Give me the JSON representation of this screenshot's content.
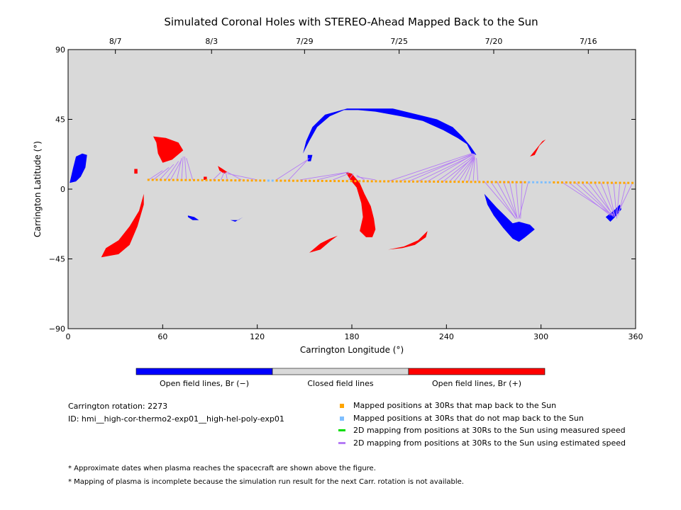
{
  "colors": {
    "background_panel": "#d9d9d9",
    "open_negative": "#0000ff",
    "closed": "#d9d9d9",
    "open_positive": "#ff0000",
    "mapped_back": "#ffa500",
    "not_mapped_back": "#7fbfff",
    "measured_speed": "#00dd00",
    "estimated_speed": "#b57cf5"
  },
  "chart_data": {
    "type": "scatter",
    "title": "Simulated Coronal Holes with STEREO-Ahead Mapped Back to the Sun",
    "xlabel": "Carrington Longitude (°)",
    "ylabel": "Carrington Latitude (°)",
    "xlim": [
      0,
      360
    ],
    "ylim": [
      -90,
      90
    ],
    "x_ticks": [
      "0",
      "60",
      "120",
      "180",
      "240",
      "300",
      "360"
    ],
    "x_tick_values": [
      0,
      60,
      120,
      180,
      240,
      300,
      360
    ],
    "y_ticks": [
      "−90",
      "−45",
      "0",
      "45",
      "90"
    ],
    "y_tick_values": [
      -90,
      -45,
      0,
      45,
      90
    ],
    "top_axis_dates": [
      {
        "label": "8/7",
        "lon": 30
      },
      {
        "label": "8/3",
        "lon": 91
      },
      {
        "label": "7/29",
        "lon": 150
      },
      {
        "label": "7/25",
        "lon": 210
      },
      {
        "label": "7/20",
        "lon": 270
      },
      {
        "label": "7/16",
        "lon": 330
      }
    ],
    "coronal_holes": [
      {
        "polarity": "negative",
        "points": [
          [
            1,
            4
          ],
          [
            3,
            13
          ],
          [
            5,
            21
          ],
          [
            9,
            23
          ],
          [
            12,
            22
          ],
          [
            11,
            14
          ],
          [
            8,
            8
          ],
          [
            5,
            5
          ]
        ]
      },
      {
        "polarity": "positive",
        "points": [
          [
            54,
            34
          ],
          [
            62,
            33
          ],
          [
            70,
            30
          ],
          [
            73,
            25
          ],
          [
            66,
            19
          ],
          [
            60,
            17
          ],
          [
            57,
            23
          ],
          [
            56,
            30
          ]
        ]
      },
      {
        "polarity": "positive",
        "points": [
          [
            48,
            -3
          ],
          [
            45,
            -14
          ],
          [
            39,
            -24
          ],
          [
            32,
            -33
          ],
          [
            24,
            -38
          ],
          [
            21,
            -44
          ],
          [
            32,
            -42
          ],
          [
            39,
            -36
          ],
          [
            44,
            -24
          ],
          [
            48,
            -10
          ]
        ]
      },
      {
        "polarity": "negative",
        "points": [
          [
            149,
            23
          ],
          [
            153,
            31
          ],
          [
            158,
            40
          ],
          [
            166,
            47
          ],
          [
            175,
            51
          ],
          [
            184,
            51
          ],
          [
            195,
            50
          ],
          [
            211,
            47
          ],
          [
            225,
            44
          ],
          [
            238,
            38
          ],
          [
            247,
            33
          ],
          [
            253,
            29
          ],
          [
            256,
            23
          ],
          [
            259,
            22
          ],
          [
            255,
            28
          ],
          [
            250,
            34
          ],
          [
            244,
            40
          ],
          [
            234,
            45
          ],
          [
            222,
            48
          ],
          [
            206,
            52
          ],
          [
            190,
            52
          ],
          [
            177,
            52
          ],
          [
            163,
            48
          ],
          [
            155,
            40
          ],
          [
            151,
            31
          ]
        ]
      },
      {
        "polarity": "negative",
        "points": [
          [
            264,
            -3
          ],
          [
            272,
            -12
          ],
          [
            277,
            -17
          ],
          [
            282,
            -22
          ],
          [
            286,
            -21
          ],
          [
            293,
            -23
          ],
          [
            296,
            -26
          ],
          [
            290,
            -31
          ],
          [
            286,
            -34
          ],
          [
            282,
            -32
          ],
          [
            276,
            -25
          ],
          [
            270,
            -17
          ],
          [
            266,
            -10
          ]
        ]
      },
      {
        "polarity": "positive",
        "points": [
          [
            176,
            11
          ],
          [
            180,
            10
          ],
          [
            185,
            4
          ],
          [
            188,
            -3
          ],
          [
            192,
            -11
          ],
          [
            194,
            -19
          ],
          [
            195,
            -26
          ],
          [
            193,
            -31
          ],
          [
            189,
            -31
          ],
          [
            185,
            -27
          ],
          [
            187,
            -18
          ],
          [
            186,
            -9
          ],
          [
            183,
            1
          ],
          [
            179,
            6
          ]
        ]
      },
      {
        "polarity": "positive",
        "points": [
          [
            153,
            -41
          ],
          [
            160,
            -35
          ],
          [
            166,
            -32
          ],
          [
            171,
            -30
          ],
          [
            167,
            -33
          ],
          [
            160,
            -39
          ]
        ]
      },
      {
        "polarity": "positive",
        "points": [
          [
            203,
            -39
          ],
          [
            213,
            -37
          ],
          [
            222,
            -33
          ],
          [
            228,
            -27
          ],
          [
            227,
            -31
          ],
          [
            220,
            -36
          ],
          [
            212,
            -38
          ]
        ]
      },
      {
        "polarity": "positive",
        "points": [
          [
            293,
            21
          ],
          [
            297,
            26
          ],
          [
            301,
            31
          ],
          [
            303,
            32
          ],
          [
            299,
            28
          ],
          [
            296,
            22
          ]
        ]
      },
      {
        "polarity": "positive",
        "points": [
          [
            95,
            15
          ],
          [
            98,
            13
          ],
          [
            101,
            11
          ],
          [
            99,
            10
          ],
          [
            96,
            12
          ]
        ]
      },
      {
        "polarity": "negative",
        "points": [
          [
            76,
            -17
          ],
          [
            80,
            -18
          ],
          [
            83,
            -20
          ],
          [
            79,
            -20
          ],
          [
            76,
            -18
          ]
        ]
      },
      {
        "polarity": "negative",
        "points": [
          [
            103,
            -20
          ],
          [
            108,
            -20
          ],
          [
            111,
            -18
          ],
          [
            106,
            -21
          ]
        ]
      },
      {
        "polarity": "negative",
        "points": [
          [
            341,
            -18
          ],
          [
            344,
            -21
          ],
          [
            347,
            -18
          ],
          [
            351,
            -13
          ],
          [
            350,
            -10
          ],
          [
            346,
            -14
          ]
        ]
      },
      {
        "polarity": "negative",
        "points": [
          [
            152,
            22
          ],
          [
            155,
            22
          ],
          [
            154,
            18
          ],
          [
            152,
            18
          ]
        ]
      },
      {
        "polarity": "positive",
        "points": [
          [
            42,
            13
          ],
          [
            44,
            13
          ],
          [
            44,
            10
          ],
          [
            42,
            10
          ]
        ]
      },
      {
        "polarity": "positive",
        "points": [
          [
            86,
            8
          ],
          [
            88,
            8
          ],
          [
            88,
            6
          ],
          [
            86,
            6
          ]
        ]
      }
    ],
    "mapped_series": {
      "lon_start": 51,
      "lon_end": 358,
      "lat_start": 6,
      "lat_end": 4,
      "count": 118,
      "not_mapped_lon_ranges": [
        [
          127,
          130
        ],
        [
          290,
          308
        ]
      ]
    },
    "mapping_lines_estimated": [
      [
        51,
        6,
        60,
        12
      ],
      [
        54,
        6,
        64,
        14
      ],
      [
        58,
        6,
        67,
        16
      ],
      [
        62,
        6,
        70,
        18
      ],
      [
        65,
        6,
        72,
        19
      ],
      [
        69,
        6,
        72,
        20
      ],
      [
        72,
        6,
        73,
        21
      ],
      [
        75,
        6,
        74,
        21
      ],
      [
        79,
        6,
        75,
        20
      ],
      [
        92,
        6,
        97,
        11
      ],
      [
        97,
        6,
        99,
        11
      ],
      [
        101,
        6,
        100,
        11
      ],
      [
        110,
        6,
        101,
        11
      ],
      [
        120,
        6,
        101,
        10
      ],
      [
        132,
        6,
        152,
        19
      ],
      [
        140,
        6,
        153,
        20
      ],
      [
        147,
        6,
        178,
        11
      ],
      [
        158,
        6,
        178,
        11
      ],
      [
        168,
        6,
        178,
        10
      ],
      [
        178,
        6,
        181,
        10
      ],
      [
        188,
        6,
        183,
        9
      ],
      [
        195,
        6,
        183,
        8
      ],
      [
        203,
        5,
        256,
        23
      ],
      [
        210,
        5,
        256,
        22
      ],
      [
        216,
        5,
        257,
        23
      ],
      [
        222,
        5,
        257,
        22
      ],
      [
        228,
        5,
        258,
        23
      ],
      [
        234,
        5,
        258,
        22
      ],
      [
        238,
        5,
        258,
        21
      ],
      [
        242,
        5,
        258,
        22
      ],
      [
        245,
        5,
        258,
        21
      ],
      [
        248,
        5,
        258,
        21
      ],
      [
        251,
        5,
        258,
        21
      ],
      [
        254,
        5,
        258,
        21
      ],
      [
        257,
        5,
        258,
        20
      ],
      [
        260,
        5,
        259,
        20
      ],
      [
        264,
        5,
        284,
        -19
      ],
      [
        268,
        5,
        284,
        -19
      ],
      [
        272,
        5,
        285,
        -19
      ],
      [
        276,
        5,
        285,
        -19
      ],
      [
        280,
        5,
        285,
        -19
      ],
      [
        284,
        5,
        286,
        -19
      ],
      [
        288,
        5,
        287,
        -19
      ],
      [
        292,
        5,
        286,
        -19
      ],
      [
        314,
        4,
        344,
        -16
      ],
      [
        318,
        4,
        344,
        -17
      ],
      [
        322,
        4,
        345,
        -17
      ],
      [
        326,
        4,
        345,
        -17
      ],
      [
        330,
        4,
        346,
        -17
      ],
      [
        334,
        4,
        346,
        -18
      ],
      [
        338,
        4,
        347,
        -18
      ],
      [
        342,
        4,
        347,
        -18
      ],
      [
        346,
        4,
        348,
        -18
      ],
      [
        350,
        4,
        348,
        -19
      ],
      [
        354,
        4,
        349,
        -17
      ],
      [
        358,
        4,
        349,
        -15
      ]
    ]
  },
  "colorbar": {
    "labels": [
      "Open field lines, Br (−)",
      "Closed field lines",
      "Open field lines, Br (+)"
    ]
  },
  "info": {
    "rotation": "Carrington rotation: 2273",
    "id": "ID: hmi__high-cor-thermo2-exp01__high-hel-poly-exp01"
  },
  "legend": {
    "items": [
      {
        "label": "Mapped positions at 30Rs that map back to the Sun",
        "kind": "square",
        "color": "#ffa500"
      },
      {
        "label": "Mapped positions at 30Rs that do not map back to the Sun",
        "kind": "square",
        "color": "#7fbfff"
      },
      {
        "label": "2D mapping from positions at 30Rs to the Sun using measured speed",
        "kind": "line",
        "color": "#00dd00"
      },
      {
        "label": "2D mapping from positions at 30Rs to the Sun using estimated speed",
        "kind": "line",
        "color": "#b57cf5"
      }
    ]
  },
  "notes": [
    "* Approximate dates when plasma reaches the spacecraft are shown above the figure.",
    "* Mapping of plasma is incomplete because the simulation run result for the next Carr. rotation is not available."
  ]
}
